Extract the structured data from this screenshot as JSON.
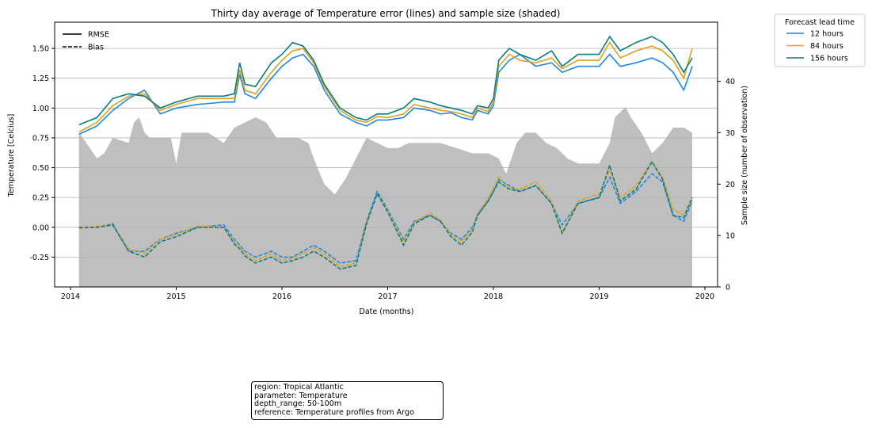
{
  "chart_data": {
    "type": "line",
    "title": "Thirty day average of Temperature error (lines) and sample size (shaded)",
    "xlabel": "Date (months)",
    "ylabel": "Temperature [Celcius]",
    "y2label": "Sample size (number of observation)",
    "xlim": [
      2013.85,
      2020.12
    ],
    "ylim": [
      -0.5,
      1.72
    ],
    "y2lim": [
      0,
      51.5
    ],
    "x_ticks": [
      "2014",
      "2015",
      "2016",
      "2017",
      "2018",
      "2019",
      "2020"
    ],
    "y_ticks": [
      "-0.25",
      "0.00",
      "0.25",
      "0.50",
      "0.75",
      "1.00",
      "1.25",
      "1.50"
    ],
    "y2_ticks": [
      "0",
      "10",
      "20",
      "30",
      "40"
    ],
    "grid": "horizontal",
    "style_legend": {
      "entries": [
        {
          "label": "RMSE",
          "dash": "solid"
        },
        {
          "label": "Bias",
          "dash": "dashed"
        }
      ],
      "placement": "top-left"
    },
    "series_legend": {
      "title": "Forecast lead time",
      "placement": "outside-top-right"
    },
    "series": [
      {
        "name": "12 hours",
        "color": "#1e88e5",
        "x": [
          2014.08,
          2014.25,
          2014.4,
          2014.55,
          2014.7,
          2014.85,
          2015.0,
          2015.2,
          2015.45,
          2015.55,
          2015.6,
          2015.65,
          2015.75,
          2015.9,
          2016.0,
          2016.1,
          2016.2,
          2016.3,
          2016.4,
          2016.55,
          2016.7,
          2016.8,
          2016.9,
          2017.0,
          2017.15,
          2017.25,
          2017.4,
          2017.5,
          2017.6,
          2017.7,
          2017.8,
          2017.85,
          2017.95,
          2018.0,
          2018.05,
          2018.15,
          2018.25,
          2018.4,
          2018.55,
          2018.65,
          2018.8,
          2019.0,
          2019.1,
          2019.2,
          2019.35,
          2019.5,
          2019.6,
          2019.7,
          2019.8,
          2019.88
        ],
        "rmse": [
          0.78,
          0.85,
          0.98,
          1.08,
          1.15,
          0.95,
          1.0,
          1.03,
          1.05,
          1.05,
          1.28,
          1.12,
          1.08,
          1.25,
          1.35,
          1.42,
          1.45,
          1.35,
          1.15,
          0.95,
          0.88,
          0.85,
          0.9,
          0.9,
          0.92,
          1.0,
          0.98,
          0.95,
          0.96,
          0.92,
          0.9,
          0.98,
          0.95,
          1.02,
          1.3,
          1.4,
          1.45,
          1.35,
          1.38,
          1.3,
          1.35,
          1.35,
          1.45,
          1.35,
          1.38,
          1.42,
          1.38,
          1.3,
          1.15,
          1.35
        ],
        "bias": [
          0.0,
          0.0,
          0.03,
          -0.2,
          -0.2,
          -0.1,
          -0.05,
          0.0,
          0.02,
          -0.1,
          -0.15,
          -0.2,
          -0.25,
          -0.2,
          -0.25,
          -0.25,
          -0.2,
          -0.15,
          -0.2,
          -0.3,
          -0.28,
          0.05,
          0.3,
          0.15,
          -0.1,
          0.05,
          0.1,
          0.05,
          -0.05,
          -0.1,
          0.0,
          0.1,
          0.22,
          0.3,
          0.4,
          0.35,
          0.3,
          0.35,
          0.2,
          0.02,
          0.2,
          0.25,
          0.42,
          0.2,
          0.3,
          0.45,
          0.38,
          0.1,
          0.05,
          0.22
        ]
      },
      {
        "name": "84 hours",
        "color": "#e0a11b",
        "x": [
          2014.08,
          2014.25,
          2014.4,
          2014.55,
          2014.7,
          2014.85,
          2015.0,
          2015.2,
          2015.45,
          2015.55,
          2015.6,
          2015.65,
          2015.75,
          2015.9,
          2016.0,
          2016.1,
          2016.2,
          2016.3,
          2016.4,
          2016.55,
          2016.7,
          2016.8,
          2016.9,
          2017.0,
          2017.15,
          2017.25,
          2017.4,
          2017.5,
          2017.6,
          2017.7,
          2017.8,
          2017.85,
          2017.95,
          2018.0,
          2018.05,
          2018.15,
          2018.25,
          2018.4,
          2018.55,
          2018.65,
          2018.8,
          2019.0,
          2019.1,
          2019.2,
          2019.35,
          2019.5,
          2019.6,
          2019.7,
          2019.8,
          2019.88
        ],
        "rmse": [
          0.8,
          0.88,
          1.02,
          1.1,
          1.12,
          0.98,
          1.03,
          1.08,
          1.08,
          1.08,
          1.32,
          1.15,
          1.12,
          1.3,
          1.4,
          1.48,
          1.5,
          1.38,
          1.18,
          0.98,
          0.9,
          0.88,
          0.93,
          0.92,
          0.95,
          1.03,
          1.0,
          0.98,
          0.97,
          0.95,
          0.92,
          1.0,
          0.97,
          1.05,
          1.35,
          1.45,
          1.4,
          1.38,
          1.42,
          1.33,
          1.4,
          1.4,
          1.55,
          1.42,
          1.48,
          1.52,
          1.48,
          1.4,
          1.25,
          1.5
        ],
        "bias": [
          -0.01,
          0.01,
          0.02,
          -0.18,
          -0.22,
          -0.1,
          -0.06,
          0.01,
          0.0,
          -0.12,
          -0.16,
          -0.22,
          -0.28,
          -0.22,
          -0.28,
          -0.26,
          -0.22,
          -0.17,
          -0.22,
          -0.33,
          -0.3,
          0.04,
          0.28,
          0.14,
          -0.12,
          0.04,
          0.12,
          0.06,
          -0.06,
          -0.12,
          -0.02,
          0.12,
          0.24,
          0.33,
          0.42,
          0.33,
          0.32,
          0.38,
          0.22,
          -0.05,
          0.22,
          0.28,
          0.48,
          0.25,
          0.35,
          0.55,
          0.42,
          0.15,
          0.1,
          0.25
        ]
      },
      {
        "name": "156 hours",
        "color": "#0a7d7d",
        "x": [
          2014.08,
          2014.25,
          2014.4,
          2014.55,
          2014.7,
          2014.85,
          2015.0,
          2015.2,
          2015.45,
          2015.55,
          2015.6,
          2015.65,
          2015.75,
          2015.9,
          2016.0,
          2016.1,
          2016.2,
          2016.3,
          2016.4,
          2016.55,
          2016.7,
          2016.8,
          2016.9,
          2017.0,
          2017.15,
          2017.25,
          2017.4,
          2017.5,
          2017.6,
          2017.7,
          2017.8,
          2017.85,
          2017.95,
          2018.0,
          2018.05,
          2018.15,
          2018.25,
          2018.4,
          2018.55,
          2018.65,
          2018.8,
          2019.0,
          2019.1,
          2019.2,
          2019.35,
          2019.5,
          2019.6,
          2019.7,
          2019.8,
          2019.88
        ],
        "rmse": [
          0.86,
          0.92,
          1.08,
          1.12,
          1.1,
          1.0,
          1.05,
          1.1,
          1.1,
          1.12,
          1.38,
          1.2,
          1.18,
          1.38,
          1.45,
          1.55,
          1.52,
          1.4,
          1.2,
          1.0,
          0.92,
          0.9,
          0.95,
          0.95,
          1.0,
          1.08,
          1.05,
          1.02,
          1.0,
          0.98,
          0.95,
          1.02,
          1.0,
          1.08,
          1.4,
          1.5,
          1.45,
          1.4,
          1.48,
          1.35,
          1.45,
          1.45,
          1.6,
          1.48,
          1.55,
          1.6,
          1.55,
          1.45,
          1.3,
          1.42
        ],
        "bias": [
          0.0,
          0.0,
          0.02,
          -0.2,
          -0.25,
          -0.12,
          -0.08,
          0.0,
          0.0,
          -0.14,
          -0.18,
          -0.24,
          -0.3,
          -0.25,
          -0.3,
          -0.28,
          -0.25,
          -0.2,
          -0.25,
          -0.35,
          -0.32,
          0.03,
          0.28,
          0.13,
          -0.15,
          0.03,
          0.1,
          0.05,
          -0.08,
          -0.15,
          -0.04,
          0.1,
          0.22,
          0.3,
          0.38,
          0.32,
          0.3,
          0.35,
          0.2,
          -0.05,
          0.2,
          0.25,
          0.52,
          0.22,
          0.32,
          0.55,
          0.4,
          0.1,
          0.08,
          0.25
        ]
      }
    ],
    "sample_size": {
      "name": "Sample size",
      "color": "#bfbfbf",
      "x": [
        2014.08,
        2014.15,
        2014.25,
        2014.32,
        2014.4,
        2014.55,
        2014.6,
        2014.65,
        2014.7,
        2014.75,
        2014.85,
        2014.95,
        2015.0,
        2015.05,
        2015.2,
        2015.3,
        2015.45,
        2015.55,
        2015.65,
        2015.75,
        2015.85,
        2015.95,
        2016.05,
        2016.15,
        2016.25,
        2016.3,
        2016.4,
        2016.5,
        2016.6,
        2016.7,
        2016.8,
        2016.9,
        2017.0,
        2017.1,
        2017.2,
        2017.35,
        2017.5,
        2017.65,
        2017.8,
        2017.95,
        2018.05,
        2018.12,
        2018.17,
        2018.22,
        2018.3,
        2018.4,
        2018.5,
        2018.6,
        2018.7,
        2018.8,
        2018.9,
        2019.0,
        2019.1,
        2019.15,
        2019.25,
        2019.3,
        2019.4,
        2019.5,
        2019.6,
        2019.7,
        2019.8,
        2019.88
      ],
      "values": [
        30,
        28,
        25,
        26,
        29,
        28,
        32,
        33,
        30,
        29,
        29,
        29,
        24,
        30,
        30,
        30,
        28,
        31,
        32,
        33,
        32,
        29,
        29,
        29,
        28,
        25,
        20,
        18,
        21,
        25,
        29,
        28,
        27,
        27,
        28,
        28,
        28,
        27,
        26,
        26,
        25,
        22,
        25,
        28,
        30,
        30,
        28,
        27,
        25,
        24,
        24,
        24,
        28,
        33,
        35,
        33,
        30,
        26,
        28,
        31,
        31,
        30
      ]
    }
  },
  "info_box": {
    "lines": [
      "region: Tropical Atlantic",
      "parameter: Temperature",
      "depth_range: 50-100m",
      "reference: Temperature profiles from Argo"
    ]
  }
}
